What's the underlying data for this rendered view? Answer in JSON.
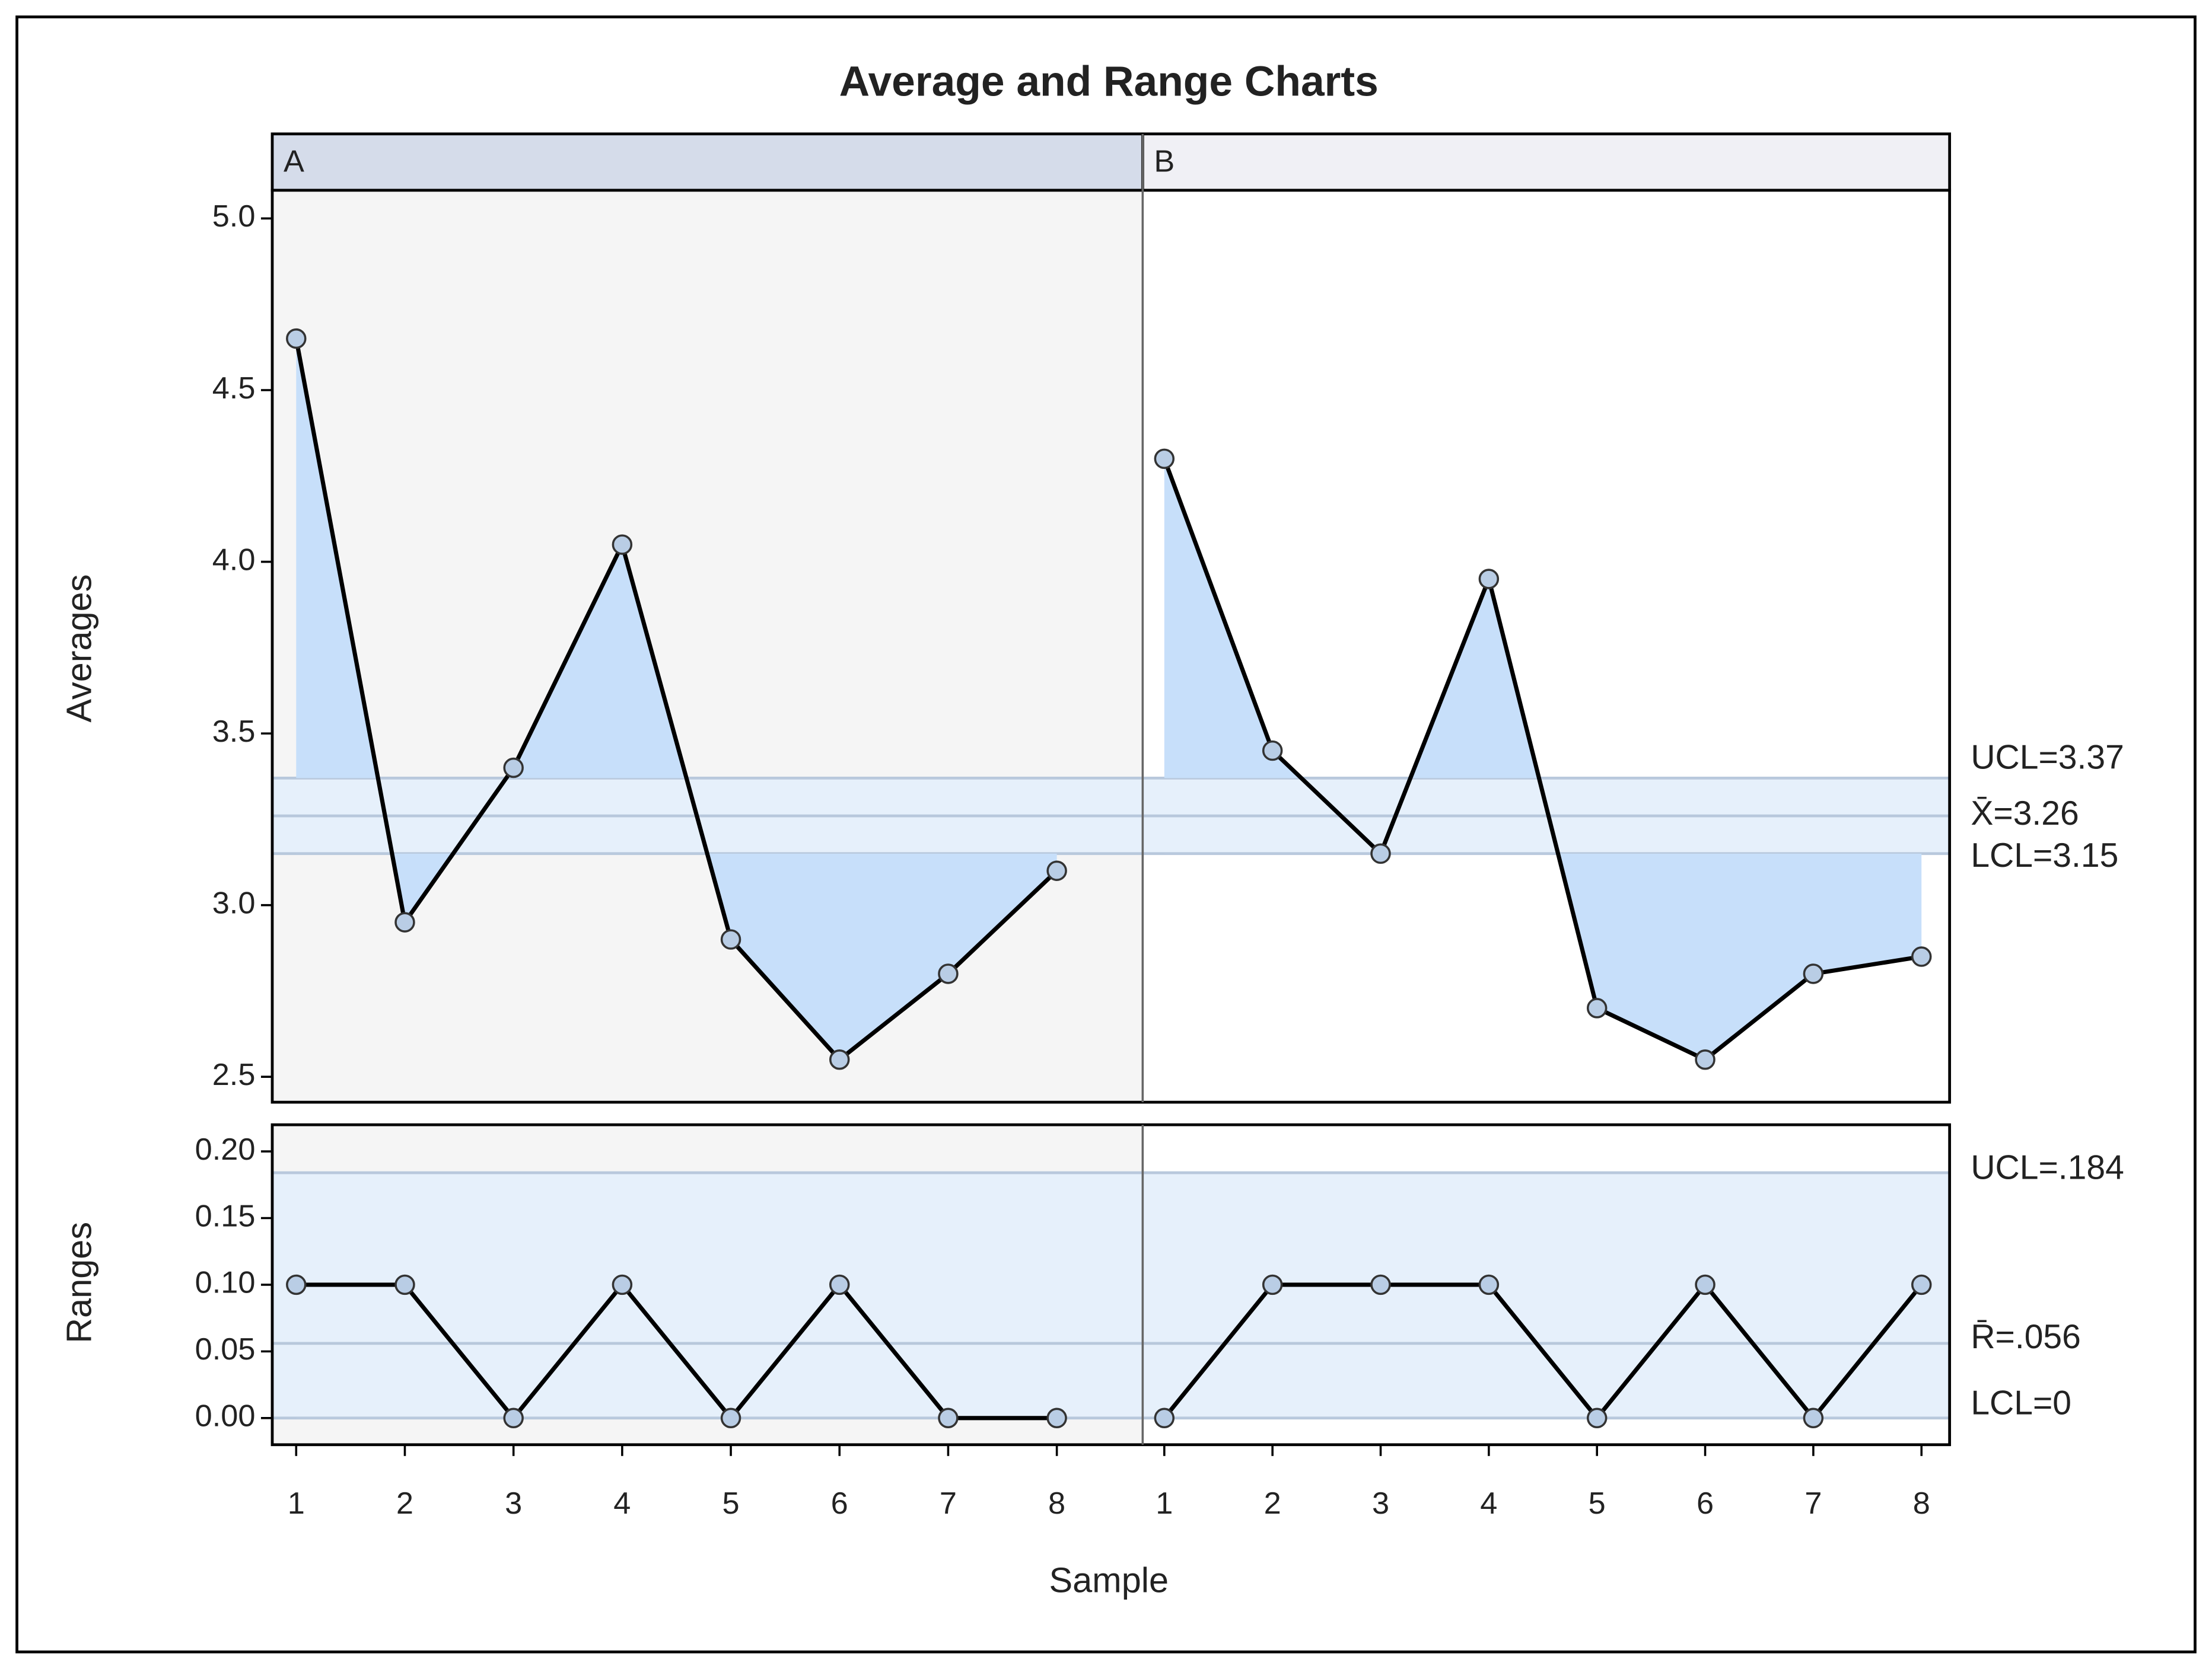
{
  "chart_data": {
    "type": "line",
    "title": "Average and Range Charts",
    "x_label": "Sample",
    "xticks": [
      1,
      2,
      3,
      4,
      5,
      6,
      7,
      8
    ],
    "line_color": "#000000",
    "marker_color": "#b9cde5",
    "fill_color": "#c7dffa",
    "band_color": "#e6f0fb",
    "panels": [
      {
        "name": "A",
        "xlim": [
          0.78,
          8.79
        ],
        "header_color": "#d5dcea",
        "background": "#f5f5f5",
        "averages": [
          4.65,
          2.95,
          3.4,
          4.05,
          2.9,
          2.55,
          2.8,
          3.1
        ],
        "ranges": [
          0.1,
          0.1,
          0,
          0.1,
          0,
          0.1,
          0,
          0
        ]
      },
      {
        "name": "B",
        "xlim": [
          0.8,
          8.26
        ],
        "header_color": "#f0f0f5",
        "background": "#ffffff",
        "averages": [
          4.3,
          3.45,
          3.15,
          3.95,
          2.7,
          2.55,
          2.8,
          2.85
        ],
        "ranges": [
          0,
          0.1,
          0.1,
          0.1,
          0,
          0.1,
          0,
          0.1
        ]
      }
    ],
    "averages": {
      "y_label": "Averages",
      "ylim": [
        2.426,
        5.082
      ],
      "yticks": [
        {
          "value": 2.5,
          "label": "2.5"
        },
        {
          "value": 3,
          "label": "3.0"
        },
        {
          "value": 3.5,
          "label": "3.5"
        },
        {
          "value": 4,
          "label": "4.0"
        },
        {
          "value": 4.5,
          "label": "4.5"
        },
        {
          "value": 5,
          "label": "5.0"
        }
      ],
      "limits": [
        {
          "value": 3.37,
          "label": "UCL=3.37"
        },
        {
          "value": 3.26,
          "label": "X̄=3.26"
        },
        {
          "value": 3.15,
          "label": "LCL=3.15"
        }
      ]
    },
    "ranges": {
      "y_label": "Ranges",
      "ylim": [
        -0.02,
        0.22
      ],
      "yticks": [
        {
          "value": 0,
          "label": "0.00"
        },
        {
          "value": 0.05,
          "label": "0.05"
        },
        {
          "value": 0.1,
          "label": "0.10"
        },
        {
          "value": 0.15,
          "label": "0.15"
        },
        {
          "value": 0.2,
          "label": "0.20"
        }
      ],
      "limits": [
        {
          "value": 0.184,
          "label": "UCL=.184"
        },
        {
          "value": 0.056,
          "label": "R̄=.056"
        },
        {
          "value": 0,
          "label": "LCL=0"
        }
      ]
    }
  }
}
